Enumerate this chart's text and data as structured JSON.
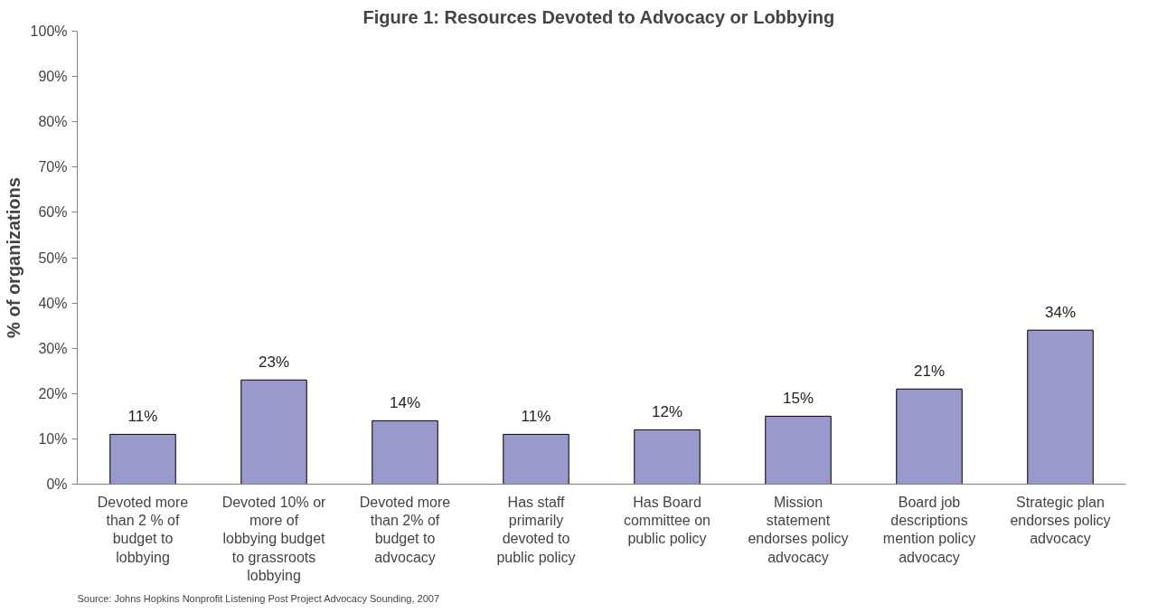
{
  "chart_data": {
    "type": "bar",
    "title": "Figure 1:  Resources Devoted to Advocacy or Lobbying",
    "ylabel": "% of organizations",
    "categories": [
      "Devoted more\nthan 2 % of\nbudget to\nlobbying",
      "Devoted 10% or\nmore of\nlobbying budget\nto grassroots\nlobbying",
      "Devoted more\nthan 2% of\nbudget to\nadvocacy",
      "Has staff\nprimarily\ndevoted to\npublic policy",
      "Has Board\ncommittee on\npublic policy",
      "Mission\nstatement\nendorses policy\nadvocacy",
      "Board job\ndescriptions\nmention policy\nadvocacy",
      "Strategic plan\nendorses policy\nadvocacy"
    ],
    "values": [
      11,
      23,
      14,
      11,
      12,
      15,
      21,
      34
    ],
    "value_labels": [
      "11%",
      "23%",
      "14%",
      "11%",
      "12%",
      "15%",
      "21%",
      "34%"
    ],
    "color": "#9999cc",
    "ylim": [
      0,
      100
    ],
    "yticks": [
      {
        "value": 0,
        "label": "0%"
      },
      {
        "value": 10,
        "label": "10%"
      },
      {
        "value": 20,
        "label": "20%"
      },
      {
        "value": 30,
        "label": "30%"
      },
      {
        "value": 40,
        "label": "40%"
      },
      {
        "value": 50,
        "label": "50%"
      },
      {
        "value": 60,
        "label": "60%"
      },
      {
        "value": 70,
        "label": "70%"
      },
      {
        "value": 80,
        "label": "80%"
      },
      {
        "value": 90,
        "label": "90%"
      },
      {
        "value": 100,
        "label": "100%"
      }
    ],
    "grid": false,
    "annotations": [
      "Source:  Johns Hopkins Nonprofit Listening Post Project Advocacy Sounding, 2007"
    ]
  }
}
